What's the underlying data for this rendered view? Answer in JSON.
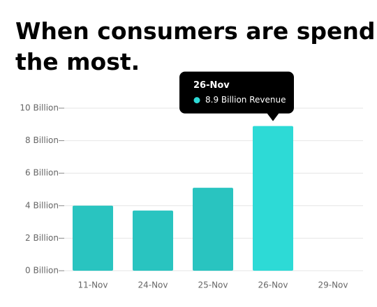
{
  "chart_data": {
    "type": "bar",
    "title": [
      "When consumers are spending",
      "the most."
    ],
    "categories": [
      "11-Nov",
      "24-Nov",
      "25-Nov",
      "26-Nov",
      "29-Nov"
    ],
    "values": [
      4.0,
      3.7,
      5.1,
      8.9,
      null
    ],
    "value_labels": [
      null,
      null,
      null,
      "8.9 Billion Revenue",
      null
    ],
    "colors": [
      "#29c4c0",
      "#29c4c0",
      "#29c4c0",
      "#2ddad6",
      null
    ],
    "ylim": [
      0,
      10
    ],
    "yticks": [
      {
        "value": 0,
        "label": "0 Billion"
      },
      {
        "value": 2,
        "label": "2 Billion"
      },
      {
        "value": 4,
        "label": "4 Billion"
      },
      {
        "value": 6,
        "label": "6 Billion"
      },
      {
        "value": 8,
        "label": "8 Billion"
      },
      {
        "value": 10,
        "label": "10 Billion"
      }
    ],
    "grid": true
  }
}
